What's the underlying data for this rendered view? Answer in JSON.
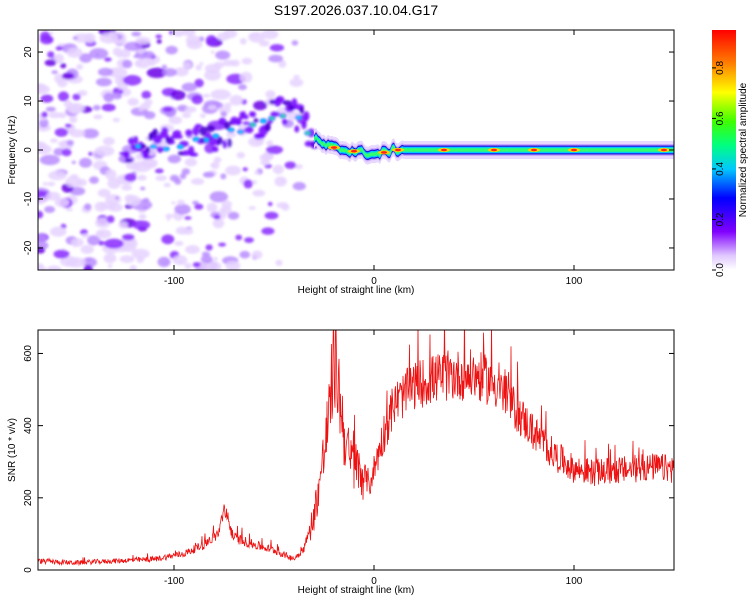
{
  "title": "S197.2026.037.10.04.G17",
  "chart_data": [
    {
      "type": "heatmap",
      "panel": "spectrogram",
      "xlabel": "Height of straight line (km)",
      "ylabel": "Frequency (Hz)",
      "xlim": [
        -168,
        150
      ],
      "ylim": [
        -24.5,
        24.5
      ],
      "xticks": [
        -100,
        0,
        100
      ],
      "yticks": [
        -20,
        -10,
        0,
        10,
        20
      ],
      "colorbar": {
        "label": "Normalized spectral amplitude",
        "range": [
          0,
          0.95
        ],
        "ticks": [
          0.0,
          0.2,
          0.4,
          0.6,
          0.8
        ],
        "colormap": [
          "#ffffff",
          "#d9b3ff",
          "#8000ff",
          "#0000ff",
          "#00ffff",
          "#00ff00",
          "#ffff00",
          "#ff8000",
          "#ff0000"
        ]
      },
      "ridge": {
        "description_points_x": [
          -120,
          -100,
          -80,
          -60,
          -45,
          -38,
          -32,
          -25,
          -15,
          -5,
          0,
          10,
          20,
          60,
          100,
          150
        ],
        "description_points_freq": [
          0.5,
          1,
          3,
          5,
          8,
          7,
          3,
          1,
          0,
          -0.5,
          -1,
          0,
          0,
          0,
          0,
          0
        ]
      },
      "noise_region_x": [
        -168,
        -30
      ]
    },
    {
      "type": "line",
      "panel": "snr",
      "xlabel": "Height of straight line (km)",
      "ylabel": "SNR (10 * v/v)",
      "xlim": [
        -168,
        150
      ],
      "ylim": [
        0,
        665
      ],
      "xticks": [
        -100,
        0,
        100
      ],
      "yticks": [
        0,
        200,
        400,
        600
      ],
      "color": "#ee1111",
      "series": [
        {
          "name": "SNR",
          "x": [
            -168,
            -150,
            -130,
            -110,
            -95,
            -85,
            -78,
            -75,
            -70,
            -60,
            -50,
            -40,
            -35,
            -30,
            -25,
            -22,
            -20,
            -18,
            -15,
            -12,
            -8,
            -5,
            -2,
            0,
            5,
            10,
            20,
            30,
            40,
            50,
            60,
            70,
            80,
            90,
            100,
            110,
            120,
            130,
            140,
            150
          ],
          "values": [
            25,
            20,
            25,
            30,
            45,
            70,
            100,
            160,
            90,
            70,
            55,
            30,
            60,
            150,
            320,
            450,
            600,
            520,
            380,
            300,
            280,
            260,
            240,
            280,
            380,
            460,
            510,
            530,
            540,
            540,
            520,
            450,
            380,
            320,
            280,
            270,
            275,
            280,
            285,
            280
          ]
        }
      ]
    }
  ]
}
